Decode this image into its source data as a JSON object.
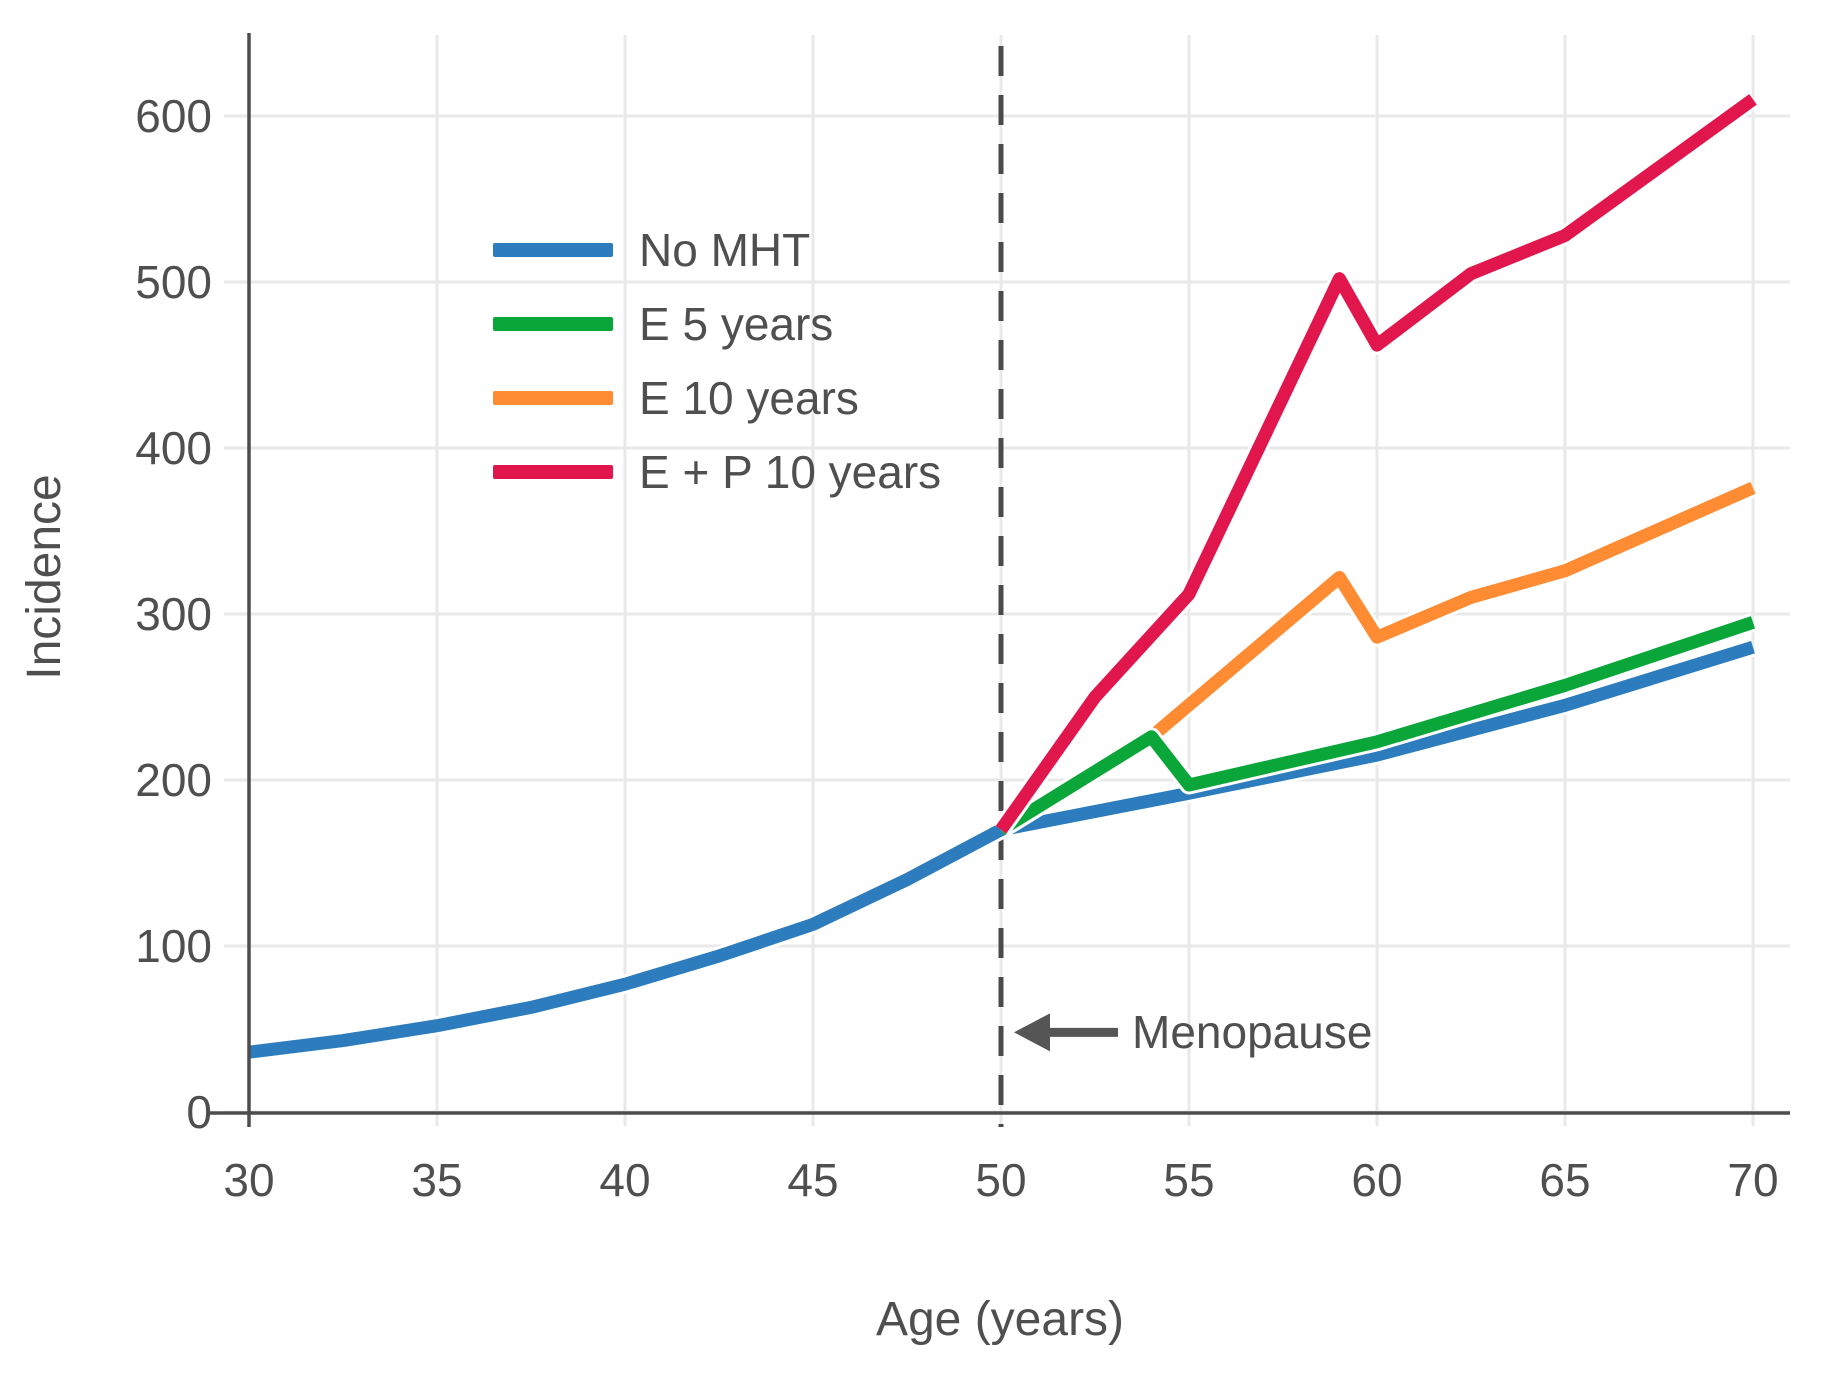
{
  "figure": {
    "background": "#ffffff",
    "text_color": "#4f4f4f",
    "axis_color": "#4d4d4d",
    "grid_color": "#e9e9e9",
    "dashed_line_color": "#4a4a4a",
    "arrow_color": "#565656"
  },
  "chart_data": {
    "type": "line",
    "title": "",
    "xlabel": "Age (years)",
    "ylabel": "Incidence",
    "xlim": [
      30,
      71
    ],
    "ylim": [
      0,
      650
    ],
    "xticks": [
      30,
      35,
      40,
      45,
      50,
      55,
      60,
      65,
      70
    ],
    "yticks": [
      0,
      100,
      200,
      300,
      400,
      500,
      600
    ],
    "grid": true,
    "legend_position": "upper-left-inside",
    "series": [
      {
        "name": "No MHT",
        "color": "#2d7cbd",
        "points": [
          [
            30,
            36
          ],
          [
            32.5,
            43
          ],
          [
            35,
            52
          ],
          [
            37.5,
            63
          ],
          [
            40,
            77
          ],
          [
            42.5,
            94
          ],
          [
            45,
            113
          ],
          [
            47.5,
            140
          ],
          [
            50,
            170
          ],
          [
            55,
            192
          ],
          [
            60,
            215
          ],
          [
            65,
            245
          ],
          [
            70,
            280
          ]
        ]
      },
      {
        "name": "E 5 years",
        "color": "#0ba639",
        "points": [
          [
            50,
            170
          ],
          [
            54,
            226
          ],
          [
            55,
            197
          ],
          [
            60,
            223
          ],
          [
            65,
            257
          ],
          [
            70,
            295
          ]
        ]
      },
      {
        "name": "E 10 years",
        "color": "#ff8c33",
        "points": [
          [
            50,
            170
          ],
          [
            54,
            226
          ],
          [
            59,
            322
          ],
          [
            60,
            286
          ],
          [
            62.5,
            310
          ],
          [
            65,
            326
          ],
          [
            70,
            376
          ]
        ]
      },
      {
        "name": "E + P 10 years",
        "color": "#e0164c",
        "points": [
          [
            50,
            170
          ],
          [
            52.5,
            250
          ],
          [
            55,
            312
          ],
          [
            59,
            502
          ],
          [
            60,
            462
          ],
          [
            62.5,
            505
          ],
          [
            65,
            528
          ],
          [
            70,
            610
          ]
        ]
      }
    ],
    "menopause_line": {
      "x": 50,
      "style": "dashed"
    },
    "annotation": {
      "text": "Menopause",
      "x": 50,
      "y": 48,
      "arrow": "left"
    }
  }
}
